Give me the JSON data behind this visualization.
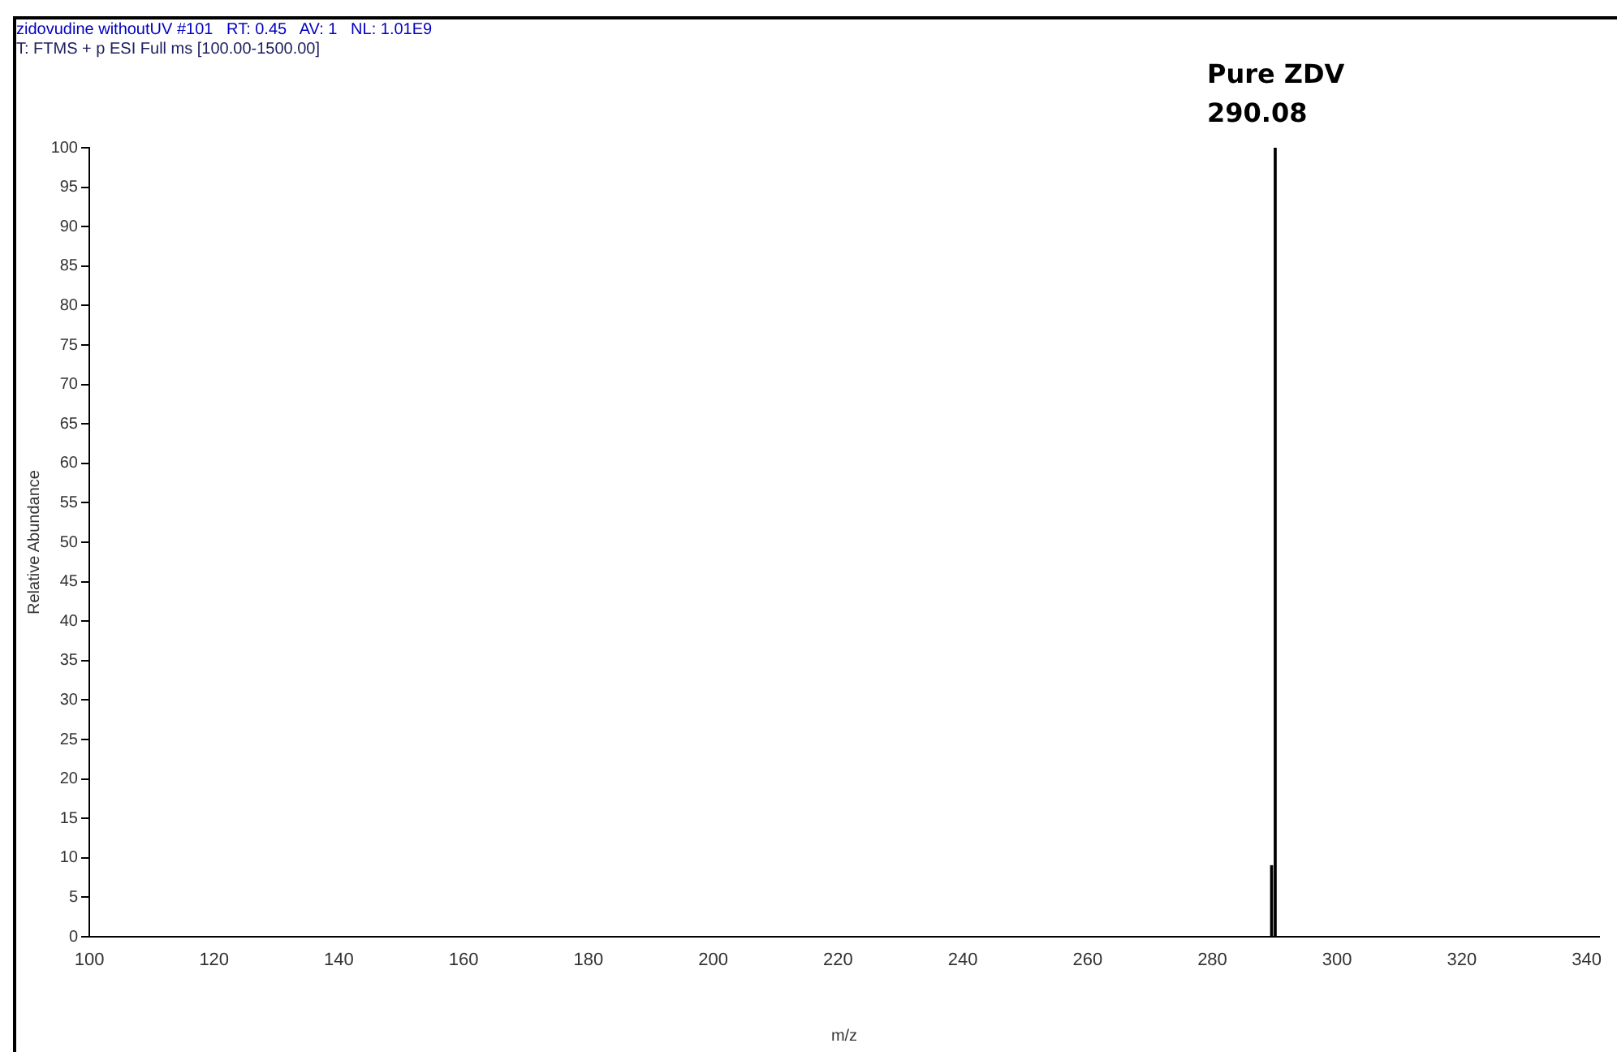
{
  "chart_data": {
    "type": "bar",
    "title": "zidovudine withoutUV #101   RT: 0.45   AV: 1   NL: 1.01E9",
    "subtitle": "T: FTMS + p ESI Full ms [100.00-1500.00]",
    "xlabel": "m/z",
    "ylabel": "Relative Abundance",
    "x": [
      289.5,
      290.08
    ],
    "series": [
      {
        "color": "#000000",
        "values": [
          9,
          100
        ]
      }
    ],
    "xlim": [
      100,
      342
    ],
    "xticks": [
      100,
      120,
      140,
      160,
      180,
      200,
      220,
      240,
      260,
      280,
      300,
      320,
      340
    ],
    "ylim": [
      0,
      100
    ],
    "yticks": [
      0,
      5,
      10,
      15,
      20,
      25,
      30,
      35,
      40,
      45,
      50,
      55,
      60,
      65,
      70,
      75,
      80,
      85,
      90,
      95,
      100
    ],
    "annotations": [
      {
        "text": "Pure ZDV\n290.08",
        "x": 290.08,
        "y": 100
      }
    ],
    "grid": false,
    "legend": false
  }
}
